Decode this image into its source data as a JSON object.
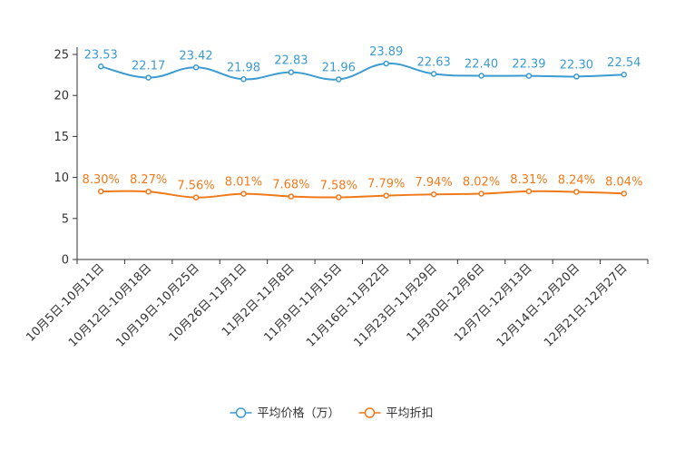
{
  "chart_data": {
    "type": "line",
    "title": "",
    "xlabel": "",
    "ylabel": "",
    "ylim": [
      0,
      25
    ],
    "yticks": [
      0,
      5,
      10,
      15,
      20,
      25
    ],
    "grid": false,
    "legend_position": "bottom-center",
    "categories": [
      "10月5日-10月11日",
      "10月12日-10月18日",
      "10月19日-10月25日",
      "10月26日-11月1日",
      "11月2日-11月8日",
      "11月9日-11月15日",
      "11月16日-11月22日",
      "11月23日-11月29日",
      "11月30日-12月6日",
      "12月7日-12月13日",
      "12月14日-12月20日",
      "12月21日-12月27日"
    ],
    "series": [
      {
        "name": "平均价格（万）",
        "color": "#3c9bd0",
        "values": [
          23.53,
          22.17,
          23.42,
          21.98,
          22.83,
          21.96,
          23.89,
          22.63,
          22.4,
          22.39,
          22.3,
          22.54
        ],
        "labels": [
          "23.53",
          "22.17",
          "23.42",
          "21.98",
          "22.83",
          "21.96",
          "23.89",
          "22.63",
          "22.40",
          "22.39",
          "22.30",
          "22.54"
        ]
      },
      {
        "name": "平均折扣",
        "color": "#f07a1a",
        "values": [
          8.3,
          8.27,
          7.56,
          8.01,
          7.68,
          7.58,
          7.79,
          7.94,
          8.02,
          8.31,
          8.24,
          8.04
        ],
        "labels": [
          "8.30%",
          "8.27%",
          "7.56%",
          "8.01%",
          "7.68%",
          "7.58%",
          "7.79%",
          "7.94%",
          "8.02%",
          "8.31%",
          "8.24%",
          "8.04%"
        ]
      }
    ]
  }
}
